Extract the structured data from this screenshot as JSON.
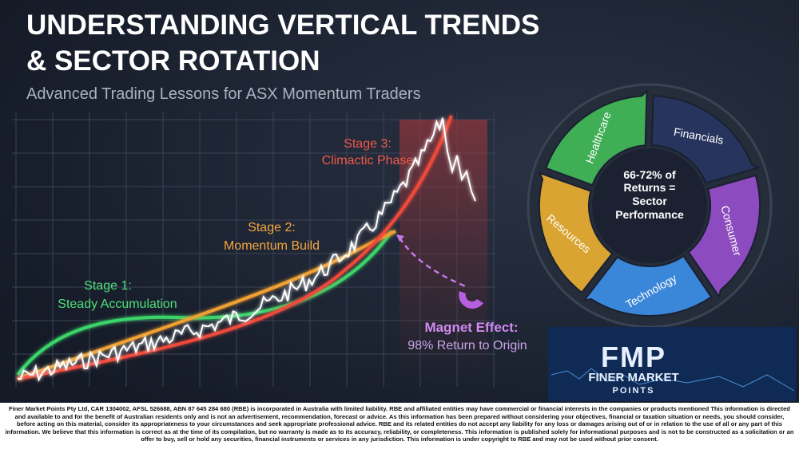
{
  "header": {
    "title_lines": [
      "UNDERSTANDING VERTICAL TRENDS",
      "& SECTOR ROTATION"
    ],
    "subtitle": "Advanced Trading Lessons for ASX Momentum Traders"
  },
  "stages": [
    {
      "label": "Stage 1:",
      "name": "Steady Accumulation"
    },
    {
      "label": "Stage 2:",
      "name": "Momentum Build"
    },
    {
      "label": "Stage 3:",
      "name": "Climactic Phase"
    }
  ],
  "magnet": {
    "label": "Magnet Effect:",
    "text": "98% Return to Origin"
  },
  "rotation": {
    "sectors": [
      "Technology",
      "Resources",
      "Healthcare",
      "Financials",
      "Consumer"
    ],
    "center_lines": [
      "66-72% of",
      "Returns =",
      "Sector",
      "Performance"
    ]
  },
  "logo": {
    "mark": "FMP",
    "name": "FINER MARKET",
    "sub": "POINTS"
  },
  "disclaimer": "Finer Market Points Pty Ltd, CAR 1304002, AFSL 526688, ABN 87 645 284 680 (RBE) is incorporated in Australia with limited liability. RBE and affiliated entities may have commercial or financial interests in the companies or products mentioned This information is directed and available to and for the benefit of Australian residents only and is not an advertisement, recommendation, forecast or advice. As this information has been prepared without considering your objectives, financial or taxation situation or needs, you should consider, before acting on this material, consider its appropriateness to your circumstances and seek appropriate professional advice. RBE and its related entities do not accept any liability for any loss or damages arising out of or in relation to the use of all or any part of this information. We believe that this information is correct as at the time of its compilation, but no warranty is made as to its accuracy, reliability, or completeness. This information is published solely for informational purposes and is not to be constructed as a solicitation or an offer to buy, sell or hold any securities, financial instruments or services in any jurisdiction. This information is under copyright to RBE and may not be used without prior consent."
}
